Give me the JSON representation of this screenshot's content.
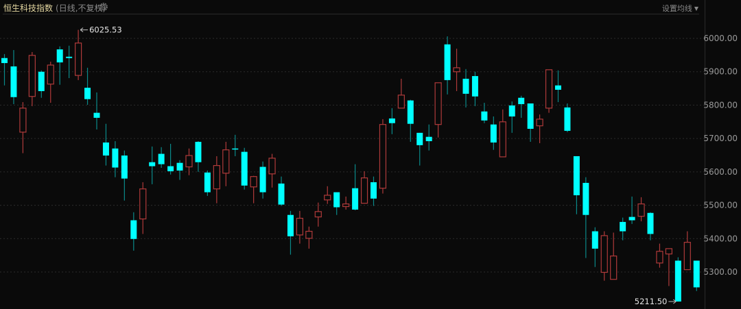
{
  "header": {
    "title": "恒生科技指数",
    "subtitle": "(日线,不复权)",
    "settings_icon": "gear-icon",
    "ma_button_label": "设置均线",
    "ma_button_icon": "caret-down-icon"
  },
  "colors": {
    "background": "#0a0a0a",
    "up": "#b03a3a",
    "down": "#00ffff",
    "title": "#e3d6a0"
  },
  "chart_data": {
    "type": "candlestick",
    "title": "恒生科技指数",
    "subtitle": "(日线,不复权)",
    "ylim": [
      5200,
      6060
    ],
    "y_axis_position": "right",
    "y_ticks": [
      "6000.00",
      "5900.00",
      "5800.00",
      "5700.00",
      "5600.00",
      "5500.00",
      "5400.00",
      "5300.00"
    ],
    "grid": true,
    "annotations": {
      "max_label": "6025.53",
      "min_label": "5211.50"
    },
    "ohlc": [
      [
        5941,
        5953,
        5859,
        5926
      ],
      [
        5916,
        5965,
        5803,
        5824
      ],
      [
        5719,
        5809,
        5656,
        5791
      ],
      [
        5826,
        5959,
        5797,
        5949
      ],
      [
        5900,
        5904,
        5822,
        5842
      ],
      [
        5863,
        5930,
        5807,
        5920
      ],
      [
        5967,
        5976,
        5861,
        5928
      ],
      [
        5945,
        5978,
        5881,
        5941
      ],
      [
        5889,
        6025.53,
        5875,
        5986
      ],
      [
        5852,
        5912,
        5801,
        5818
      ],
      [
        5777,
        5838,
        5727,
        5762
      ],
      [
        5688,
        5744,
        5619,
        5649
      ],
      [
        5670,
        5692,
        5584,
        5613
      ],
      [
        5649,
        5664,
        5514,
        5580
      ],
      [
        5455,
        5479,
        5364,
        5399
      ],
      [
        5459,
        5569,
        5414,
        5549
      ],
      [
        5629,
        5676,
        5563,
        5617
      ],
      [
        5654,
        5674,
        5612,
        5623
      ],
      [
        5617,
        5684,
        5592,
        5602
      ],
      [
        5627,
        5635,
        5576,
        5604
      ],
      [
        5615,
        5670,
        5590,
        5649
      ],
      [
        5690,
        5692,
        5600,
        5629
      ],
      [
        5598,
        5604,
        5528,
        5539
      ],
      [
        5549,
        5647,
        5506,
        5619
      ],
      [
        5596,
        5690,
        5557,
        5666
      ],
      [
        5670,
        5711,
        5647,
        5668
      ],
      [
        5660,
        5672,
        5547,
        5559
      ],
      [
        5555,
        5588,
        5506,
        5586
      ],
      [
        5615,
        5631,
        5520,
        5539
      ],
      [
        5594,
        5654,
        5553,
        5641
      ],
      [
        5565,
        5586,
        5498,
        5502
      ],
      [
        5471,
        5483,
        5352,
        5407
      ],
      [
        5411,
        5483,
        5385,
        5461
      ],
      [
        5401,
        5436,
        5370,
        5422
      ],
      [
        5465,
        5508,
        5436,
        5481
      ],
      [
        5516,
        5557,
        5504,
        5530
      ],
      [
        5539,
        5539,
        5471,
        5494
      ],
      [
        5496,
        5526,
        5487,
        5504
      ],
      [
        5551,
        5623,
        5485,
        5487
      ],
      [
        5506,
        5602,
        5506,
        5582
      ],
      [
        5569,
        5586,
        5498,
        5520
      ],
      [
        5551,
        5758,
        5535,
        5742
      ],
      [
        5760,
        5791,
        5713,
        5746
      ],
      [
        5791,
        5879,
        5791,
        5830
      ],
      [
        5814,
        5816,
        5690,
        5744
      ],
      [
        5717,
        5717,
        5619,
        5680
      ],
      [
        5705,
        5742,
        5664,
        5692
      ],
      [
        5742,
        5867,
        5703,
        5867
      ],
      [
        5982,
        6006,
        5832,
        5875
      ],
      [
        5900,
        5969,
        5842,
        5912
      ],
      [
        5879,
        5908,
        5793,
        5834
      ],
      [
        5887,
        5900,
        5797,
        5826
      ],
      [
        5781,
        5807,
        5746,
        5754
      ],
      [
        5742,
        5766,
        5666,
        5688
      ],
      [
        5645,
        5787,
        5645,
        5750
      ],
      [
        5799,
        5811,
        5717,
        5766
      ],
      [
        5822,
        5828,
        5762,
        5803
      ],
      [
        5805,
        5805,
        5690,
        5729
      ],
      [
        5738,
        5772,
        5686,
        5758
      ],
      [
        5791,
        5906,
        5777,
        5906
      ],
      [
        5859,
        5904,
        5809,
        5846
      ],
      [
        5793,
        5805,
        5719,
        5723
      ],
      [
        5647,
        5647,
        5473,
        5530
      ],
      [
        5567,
        5584,
        5342,
        5471
      ],
      [
        5422,
        5434,
        5315,
        5370
      ],
      [
        5299,
        5422,
        5274,
        5409
      ],
      [
        5278,
        5418,
        5278,
        5348
      ],
      [
        5450,
        5463,
        5395,
        5422
      ],
      [
        5465,
        5526,
        5444,
        5455
      ],
      [
        5467,
        5524,
        5452,
        5504
      ],
      [
        5477,
        5479,
        5395,
        5414
      ],
      [
        5327,
        5385,
        5313,
        5362
      ],
      [
        5354,
        5370,
        5258,
        5370
      ],
      [
        5334,
        5344,
        5211.5,
        5211.5
      ],
      [
        5307,
        5422,
        5307,
        5389
      ],
      [
        5334,
        5334,
        5243,
        5254
      ]
    ]
  }
}
